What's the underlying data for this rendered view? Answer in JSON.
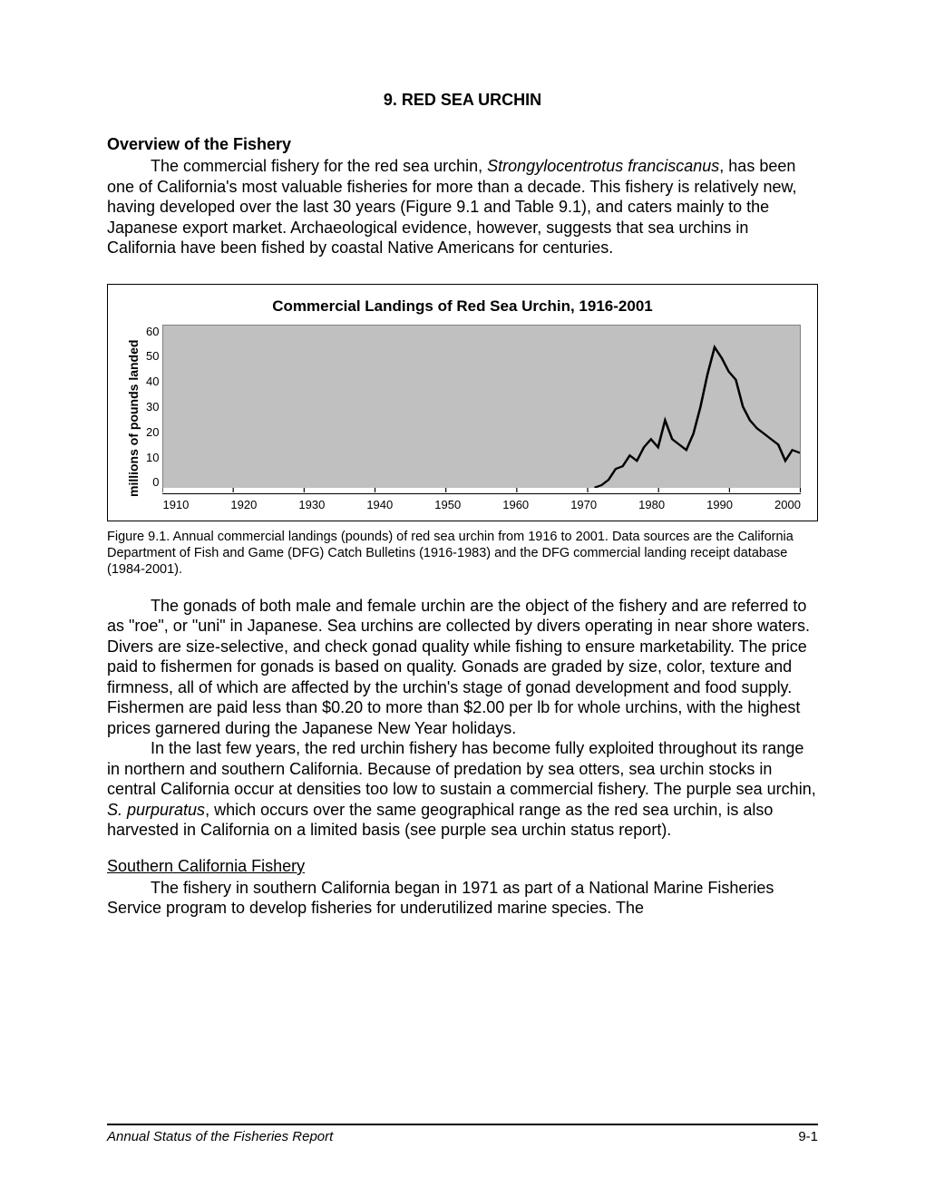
{
  "section": {
    "number_title": "9.  RED SEA URCHIN"
  },
  "overview": {
    "heading": "Overview of the Fishery",
    "p1_a": "The commercial fishery for the red sea urchin, ",
    "p1_species": "Strongylocentrotus franciscanus",
    "p1_b": ", has been one of California's most valuable fisheries for more than a decade.  This fishery is relatively new, having developed over the last 30 years (Figure 9.1 and Table 9.1), and caters mainly to the Japanese export market.  Archaeological evidence, however, suggests that sea urchins in California have been fished by coastal Native Americans for centuries."
  },
  "chart": {
    "title": "Commercial Landings of Red Sea Urchin, 1916-2001",
    "ylabel": "millions of pounds landed",
    "ylim": [
      0,
      60
    ],
    "ytick_step": 10,
    "yticks": [
      "60",
      "50",
      "40",
      "30",
      "20",
      "10",
      "0"
    ],
    "xlim": [
      1910,
      2000
    ],
    "xtick_step": 10,
    "xticks": [
      "1910",
      "1920",
      "1930",
      "1940",
      "1950",
      "1960",
      "1970",
      "1980",
      "1990",
      "2000"
    ],
    "plot_bg": "#c0c0c0",
    "border_color": "#808080",
    "line_color": "#000000",
    "line_width": 2.2,
    "series": [
      {
        "x": 1971,
        "y": 0.1
      },
      {
        "x": 1972,
        "y": 1
      },
      {
        "x": 1973,
        "y": 3
      },
      {
        "x": 1974,
        "y": 7
      },
      {
        "x": 1975,
        "y": 8
      },
      {
        "x": 1976,
        "y": 12
      },
      {
        "x": 1977,
        "y": 10
      },
      {
        "x": 1978,
        "y": 15
      },
      {
        "x": 1979,
        "y": 18
      },
      {
        "x": 1980,
        "y": 15
      },
      {
        "x": 1981,
        "y": 25
      },
      {
        "x": 1982,
        "y": 18
      },
      {
        "x": 1983,
        "y": 16
      },
      {
        "x": 1984,
        "y": 14
      },
      {
        "x": 1985,
        "y": 20
      },
      {
        "x": 1986,
        "y": 30
      },
      {
        "x": 1987,
        "y": 42
      },
      {
        "x": 1988,
        "y": 52
      },
      {
        "x": 1989,
        "y": 48
      },
      {
        "x": 1990,
        "y": 43
      },
      {
        "x": 1991,
        "y": 40
      },
      {
        "x": 1992,
        "y": 30
      },
      {
        "x": 1993,
        "y": 25
      },
      {
        "x": 1994,
        "y": 22
      },
      {
        "x": 1995,
        "y": 20
      },
      {
        "x": 1996,
        "y": 18
      },
      {
        "x": 1997,
        "y": 16
      },
      {
        "x": 1998,
        "y": 10
      },
      {
        "x": 1999,
        "y": 14
      },
      {
        "x": 2000,
        "y": 13
      },
      {
        "x": 2001,
        "y": 14
      }
    ]
  },
  "caption": {
    "text": "Figure 9.1.  Annual commercial landings (pounds) of red sea urchin from 1916 to 2001.  Data sources are the California Department of Fish and Game (DFG) Catch Bulletins (1916-1983) and the DFG commercial landing receipt database (1984-2001)."
  },
  "para2": {
    "text": "The gonads of both male and female urchin are the object of the fishery and are referred to as \"roe\", or \"uni\" in Japanese.  Sea urchins are collected by divers operating in near shore waters.  Divers are size-selective, and check gonad quality while fishing to ensure marketability.  The price paid to fishermen for gonads is based on quality.  Gonads are graded by size, color, texture and firmness, all of which are affected by the urchin's stage of gonad development and food supply.  Fishermen are paid less than $0.20 to more than $2.00 per lb for whole urchins, with the highest prices garnered during the Japanese New Year holidays."
  },
  "para3": {
    "a": "In the last few years, the red urchin fishery has become fully exploited throughout its range in northern and southern California.  Because of predation by sea otters, sea urchin stocks in central California occur at densities too low to sustain a commercial fishery.  The purple sea urchin, ",
    "species": "S. purpuratus",
    "b": ", which occurs over the same geographical range as the red sea urchin, is also harvested in California on a limited basis (see purple sea urchin status report)."
  },
  "southern": {
    "heading": "Southern California Fishery",
    "p1": "The fishery in southern California began in 1971 as part of a National Marine Fisheries Service program to develop fisheries for underutilized marine species.  The"
  },
  "footer": {
    "left": "Annual Status of the Fisheries Report",
    "right": "9-1"
  }
}
